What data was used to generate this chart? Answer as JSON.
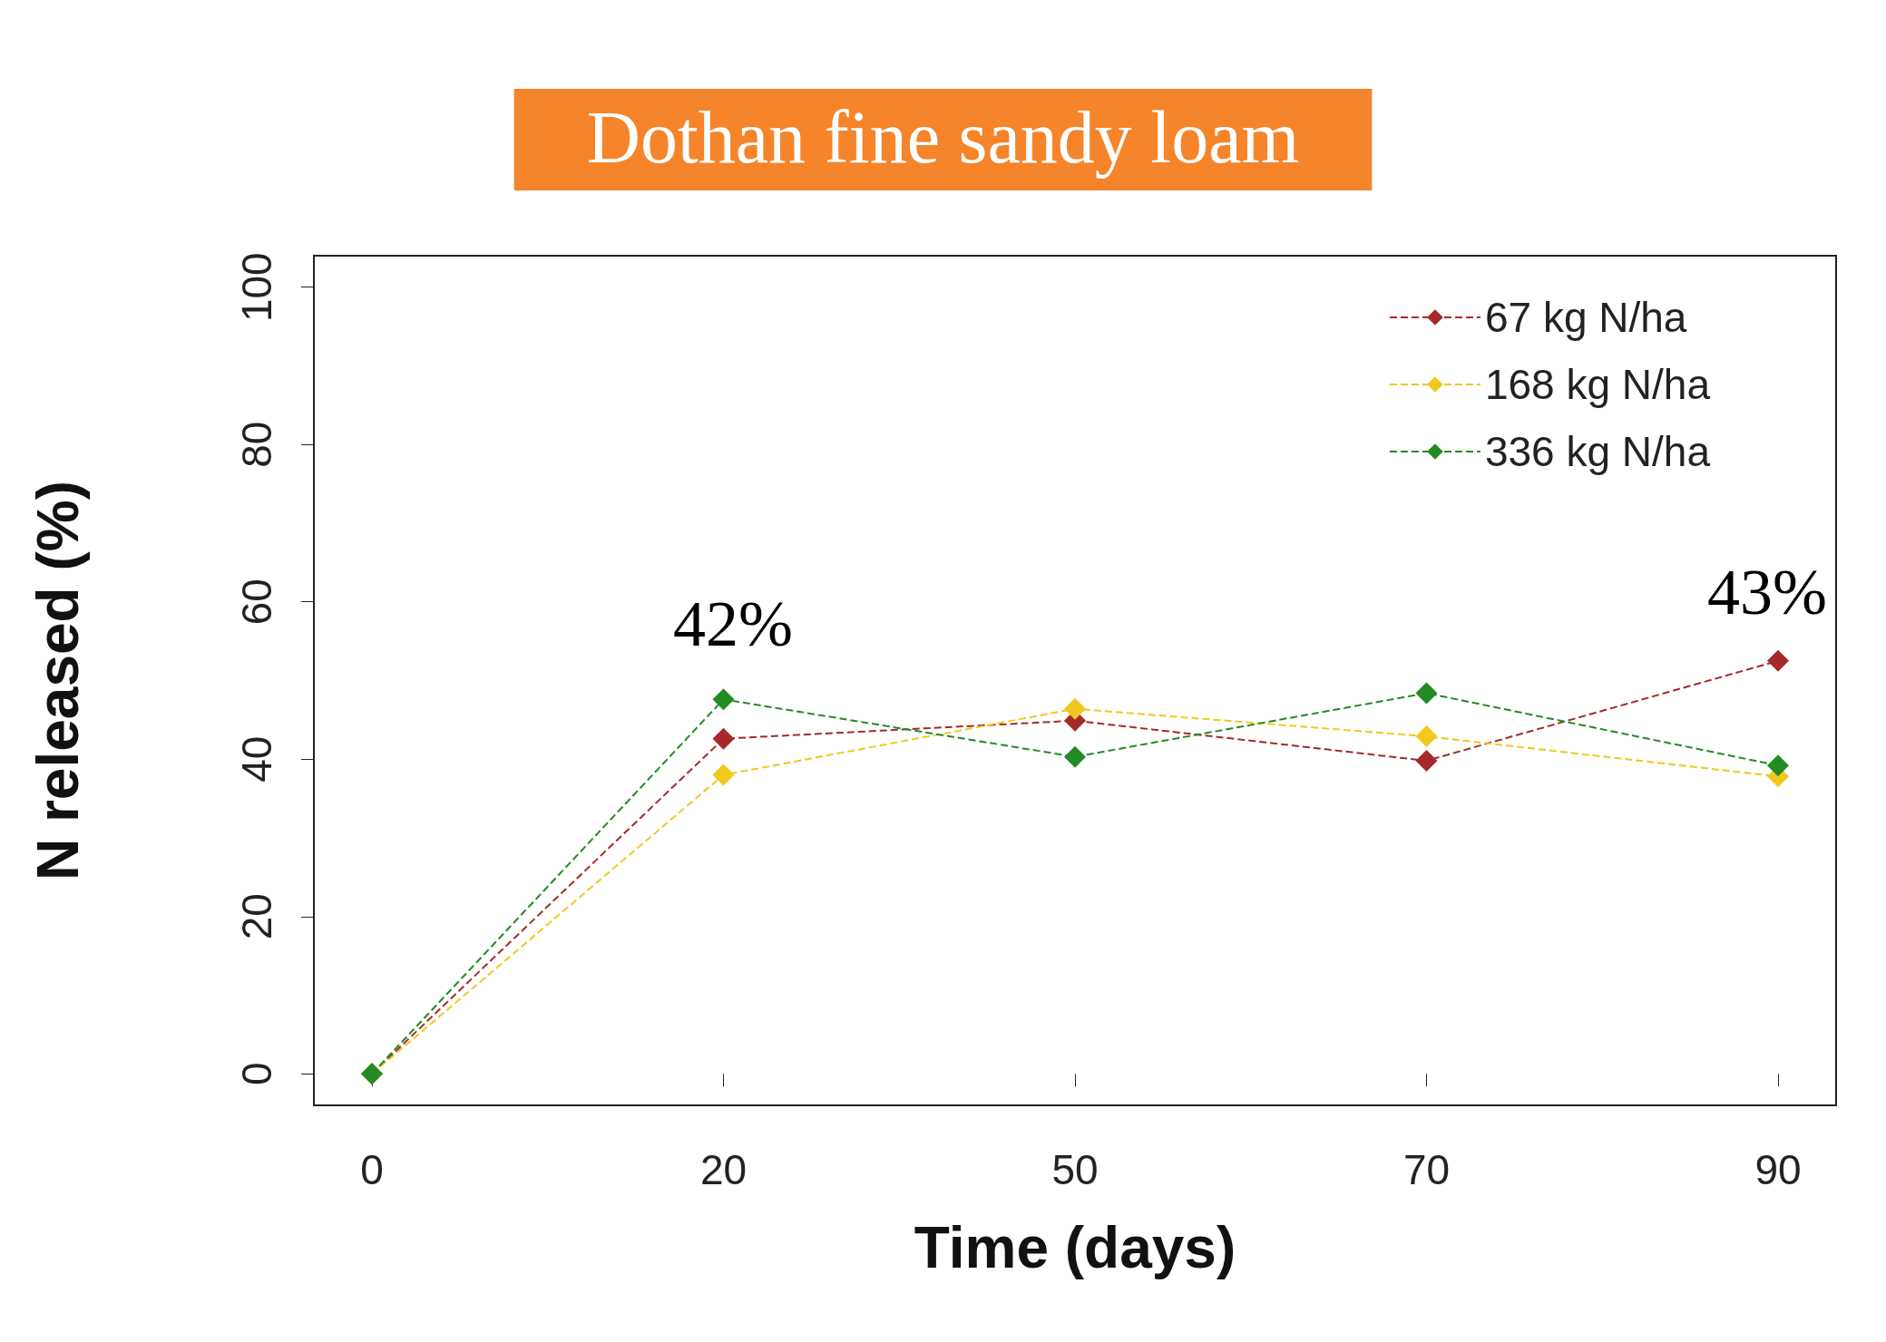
{
  "chart_data": {
    "type": "line",
    "title": "Dothan fine sandy loam",
    "xlabel": "Time (days)",
    "ylabel": "N released (%)",
    "categories": [
      "0",
      "20",
      "50",
      "70",
      "90"
    ],
    "series": [
      {
        "name": "67 kg N/ha",
        "color": "#a52a2a",
        "values": [
          0,
          42.6,
          44.9,
          39.8,
          52.5
        ]
      },
      {
        "name": "168 kg N/ha",
        "color": "#f2c81e",
        "values": [
          0,
          38.0,
          46.4,
          42.9,
          37.8
        ]
      },
      {
        "name": "336 kg N/ha",
        "color": "#238b23",
        "values": [
          0,
          47.6,
          40.3,
          48.4,
          39.2
        ]
      }
    ],
    "ylim": [
      -4,
      104
    ],
    "yticks": [
      0,
      20,
      40,
      60,
      80,
      100
    ],
    "grid": false,
    "legend": "top right",
    "marker": "diamond",
    "line_style": "dashed",
    "annotations": [
      "42%",
      "43%"
    ]
  }
}
